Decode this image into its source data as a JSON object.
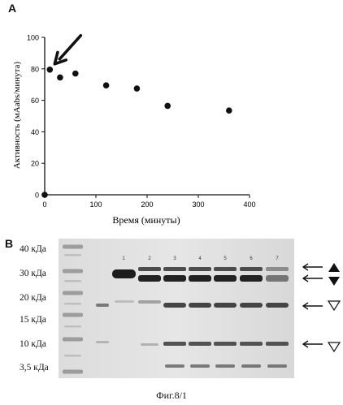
{
  "figure": {
    "panel_a_label": "A",
    "panel_b_label": "B",
    "caption": "Фиг.8/1"
  },
  "chart_data": {
    "type": "scatter",
    "title": "",
    "xlabel": "Время (минуты)",
    "ylabel": "Активность (мAabs/минута)",
    "xlim": [
      0,
      400
    ],
    "ylim": [
      0,
      100
    ],
    "xticks": [
      0,
      100,
      200,
      300,
      400
    ],
    "yticks": [
      0,
      20,
      40,
      60,
      80,
      100
    ],
    "grid": false,
    "legend": "none",
    "series": [
      {
        "x": [
          0,
          10,
          30,
          60,
          120,
          180,
          240,
          360
        ],
        "y": [
          0,
          79.5,
          74.5,
          77,
          69.5,
          67.5,
          56.5,
          53.5
        ]
      }
    ],
    "annotation": {
      "type": "arrow",
      "points_to": {
        "x": 10,
        "y": 79.5
      }
    }
  },
  "gel": {
    "mw_markers": [
      "40 кДа",
      "30 кДа",
      "20 кДа",
      "15 кДа",
      "10 кДа",
      "3,5 кДа"
    ],
    "lane_numbers": [
      "1",
      "2",
      "3",
      "4",
      "5",
      "6",
      "7"
    ],
    "band_markers": [
      {
        "symbol": "filled-up-triangle"
      },
      {
        "symbol": "filled-down-triangle"
      },
      {
        "symbol": "open-down-triangle"
      },
      {
        "symbol": "open-down-triangle"
      }
    ]
  }
}
